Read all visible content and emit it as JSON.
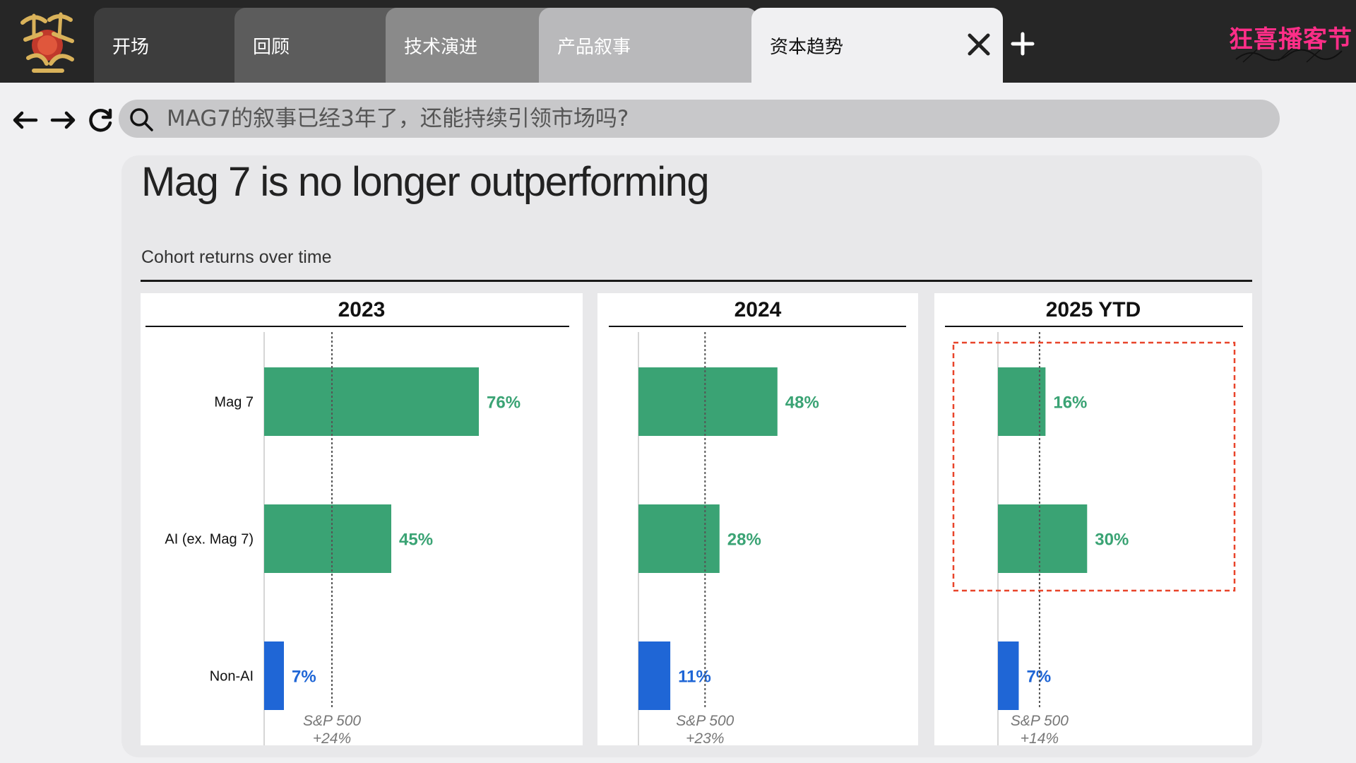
{
  "tabs": [
    {
      "label": "开场"
    },
    {
      "label": "回顾"
    },
    {
      "label": "技术演进"
    },
    {
      "label": "产品叙事"
    },
    {
      "label": "资本趋势",
      "active": true
    }
  ],
  "brand": {
    "app_logo_icon": "dragon-seal-logo-icon",
    "podcast_logo_text": "狂喜播客节",
    "pink": "#ff2e88"
  },
  "address_bar": {
    "query": "MAG7的叙事已经3年了，还能持续引领市场吗?"
  },
  "slide": {
    "title": "Mag 7 is no longer outperforming",
    "subtitle": "Cohort returns over time"
  },
  "chart_data": {
    "type": "bar",
    "orientation": "horizontal",
    "categories": [
      "Mag 7",
      "AI (ex. Mag 7)",
      "Non-AI"
    ],
    "bar_colors": [
      "#3aa374",
      "#3aa374",
      "#1f66d6"
    ],
    "label_colors": [
      "#3aa374",
      "#3aa374",
      "#1f66d6"
    ],
    "panels": [
      {
        "title": "2023",
        "values": [
          76,
          45,
          7
        ],
        "value_labels": [
          "76%",
          "45%",
          "7%"
        ],
        "sp500_value": 24,
        "sp500_label": "S&P 500",
        "sp500_value_label": "+24%"
      },
      {
        "title": "2024",
        "values": [
          48,
          28,
          11
        ],
        "value_labels": [
          "48%",
          "28%",
          "11%"
        ],
        "sp500_value": 23,
        "sp500_label": "S&P 500",
        "sp500_value_label": "+23%"
      },
      {
        "title": "2025 YTD",
        "values": [
          16,
          30,
          7
        ],
        "value_labels": [
          "16%",
          "30%",
          "7%"
        ],
        "sp500_value": 14,
        "sp500_label": "S&P 500",
        "sp500_value_label": "+14%",
        "highlight_categories": [
          "Mag 7",
          "AI (ex. Mag 7)"
        ],
        "highlight_color": "#e8442a"
      }
    ]
  }
}
